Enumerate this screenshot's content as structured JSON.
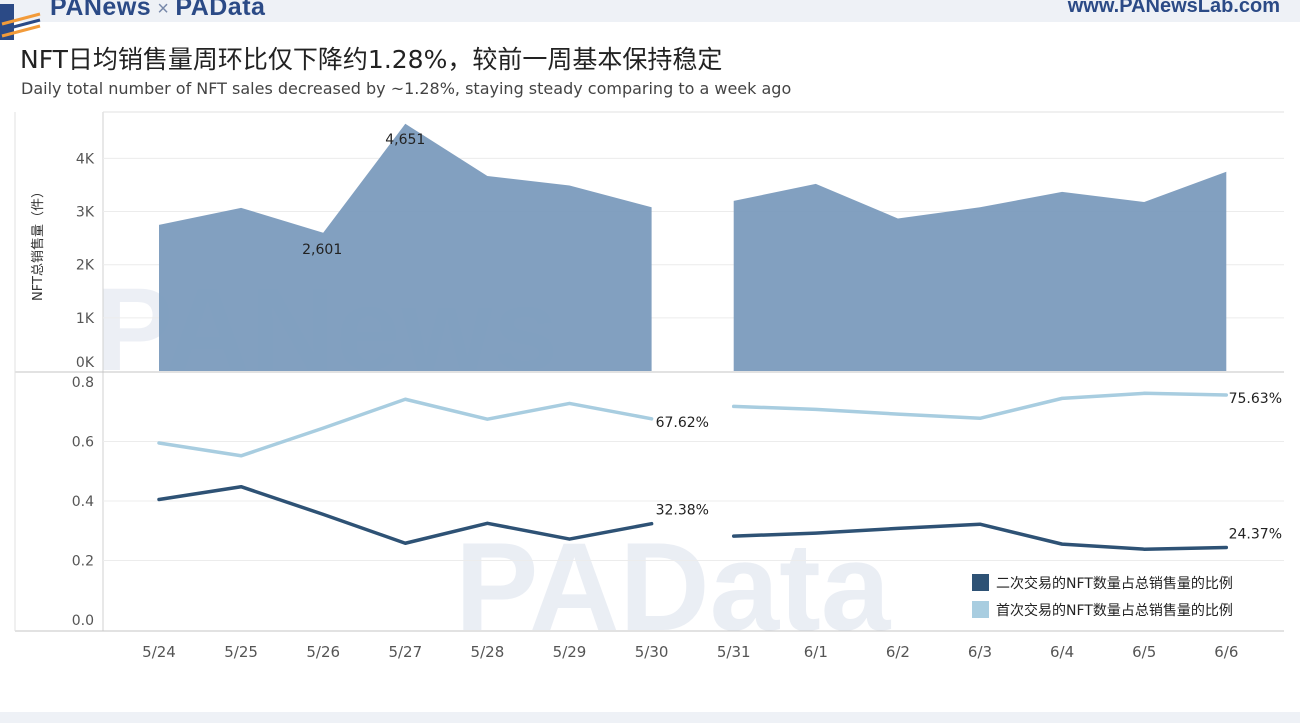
{
  "header": {
    "brand_left": "PANews",
    "brand_sep": "×",
    "brand_right": "PAData",
    "site": "www.PANewsLab.com"
  },
  "title": "NFT日均销售量周环比仅下降约1.28%，较前一周基本保持稳定",
  "subtitle": "Daily total number of NFT sales decreased by ~1.28%, staying steady comparing to a week ago",
  "colors": {
    "area": "#7b9bbd",
    "secondary_line": "#2e5275",
    "primary_line": "#a8cde0",
    "grid": "#ececec",
    "watermark": "#dde3ee"
  },
  "chart_data": [
    {
      "type": "area",
      "ylabel": "NFT总销售量（件）",
      "ylim": [
        0,
        4800
      ],
      "yticks": [
        0,
        1000,
        2000,
        3000,
        4000
      ],
      "ytick_labels": [
        "0K",
        "1K",
        "2K",
        "3K",
        "4K"
      ],
      "categories": [
        "5/24",
        "5/25",
        "5/26",
        "5/27",
        "5/28",
        "5/29",
        "5/30",
        "5/31",
        "6/1",
        "6/2",
        "6/3",
        "6/4",
        "6/5",
        "6/6"
      ],
      "segments": [
        {
          "x": [
            "5/24",
            "5/25",
            "5/26",
            "5/27",
            "5/28",
            "5/29",
            "5/30"
          ],
          "values": [
            2750,
            3070,
            2601,
            4651,
            3670,
            3490,
            3080
          ]
        },
        {
          "x": [
            "5/31",
            "6/1",
            "6/2",
            "6/3",
            "6/4",
            "6/5",
            "6/6"
          ],
          "values": [
            3200,
            3520,
            2870,
            3080,
            3370,
            3180,
            3750
          ]
        }
      ],
      "annotations": [
        {
          "x": "5/27",
          "y": 4651,
          "text": "4,651"
        },
        {
          "x": "5/26",
          "y": 2601,
          "text": "2,601"
        }
      ]
    },
    {
      "type": "line",
      "ylim": [
        0,
        0.8
      ],
      "yticks": [
        0.0,
        0.2,
        0.4,
        0.6,
        0.8
      ],
      "ytick_labels": [
        "0.0",
        "0.2",
        "0.4",
        "0.6",
        "0.8"
      ],
      "xtick_labels": [
        "5/24",
        "5/25",
        "5/26",
        "5/27",
        "5/28",
        "5/29",
        "5/30",
        "5/31",
        "6/1",
        "6/2",
        "6/3",
        "6/4",
        "6/5",
        "6/6"
      ],
      "legend": "bottom-right",
      "series": [
        {
          "name": "二次交易的NFT数量占总销售量的比例",
          "color_key": "secondary_line",
          "segments": [
            {
              "x": [
                "5/24",
                "5/25",
                "5/26",
                "5/27",
                "5/28",
                "5/29",
                "5/30"
              ],
              "values": [
                0.405,
                0.448,
                0.355,
                0.258,
                0.325,
                0.272,
                0.3238
              ]
            },
            {
              "x": [
                "5/31",
                "6/1",
                "6/2",
                "6/3",
                "6/4",
                "6/5",
                "6/6"
              ],
              "values": [
                0.282,
                0.292,
                0.308,
                0.322,
                0.255,
                0.238,
                0.2437
              ]
            }
          ]
        },
        {
          "name": "首次交易的NFT数量占总销售量的比例",
          "color_key": "primary_line",
          "segments": [
            {
              "x": [
                "5/24",
                "5/25",
                "5/26",
                "5/27",
                "5/28",
                "5/29",
                "5/30"
              ],
              "values": [
                0.595,
                0.552,
                0.645,
                0.742,
                0.675,
                0.728,
                0.6762
              ]
            },
            {
              "x": [
                "5/31",
                "6/1",
                "6/2",
                "6/3",
                "6/4",
                "6/5",
                "6/6"
              ],
              "values": [
                0.718,
                0.708,
                0.692,
                0.678,
                0.745,
                0.762,
                0.7563
              ]
            }
          ]
        }
      ],
      "annotations": [
        {
          "x": "5/30",
          "y": 0.6762,
          "text": "67.62%"
        },
        {
          "x": "6/6",
          "y": 0.7563,
          "text": "75.63%"
        },
        {
          "x": "5/30",
          "y": 0.3238,
          "text": "32.38%"
        },
        {
          "x": "6/6",
          "y": 0.2437,
          "text": "24.37%"
        }
      ]
    }
  ]
}
